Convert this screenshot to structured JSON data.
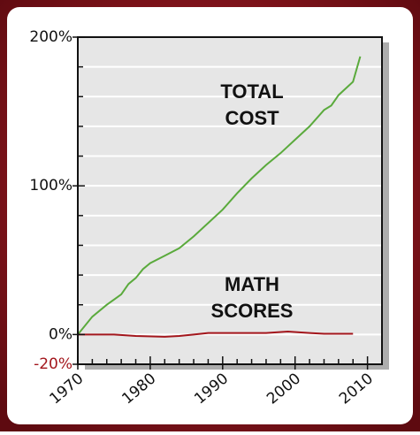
{
  "chart_data": {
    "type": "line",
    "xlim": [
      1970,
      2012
    ],
    "xticks": [
      1970,
      1980,
      1990,
      2000,
      2010
    ],
    "minor_xticks": [
      1972,
      1974,
      1976,
      1978,
      1982,
      1984,
      1986,
      1988,
      1992,
      1994,
      1996,
      1998,
      2002,
      2004,
      2006,
      2008
    ],
    "ylim": [
      -20,
      200
    ],
    "yticks": [
      {
        "value": -20,
        "label": "-20%"
      },
      {
        "value": 0,
        "label": "0%"
      },
      {
        "value": 100,
        "label": "100%"
      },
      {
        "value": 200,
        "label": "200%"
      }
    ],
    "minor_yticks": [
      20,
      40,
      60,
      80,
      120,
      140,
      160,
      180
    ],
    "grid": true,
    "annotations": [
      [
        "TOTAL",
        "COST"
      ],
      [
        "MATH",
        "SCORES"
      ]
    ],
    "series": [
      {
        "color": "#5aaa3c",
        "x": [
          1970,
          1972,
          1974,
          1976,
          1977,
          1978,
          1979,
          1980,
          1982,
          1984,
          1986,
          1988,
          1990,
          1992,
          1994,
          1996,
          1998,
          2000,
          2002,
          2004,
          2005,
          2006,
          2008,
          2009
        ],
        "values": [
          0,
          12,
          20,
          27,
          34,
          38,
          44,
          48,
          53,
          58,
          66,
          75,
          84,
          95,
          105,
          114,
          122,
          131,
          140,
          151,
          154,
          161,
          170,
          187
        ]
      },
      {
        "color": "#a3161c",
        "x": [
          1970,
          1975,
          1978,
          1982,
          1984,
          1986,
          1988,
          1990,
          1996,
          1999,
          2002,
          2004,
          2008
        ],
        "values": [
          0,
          0,
          -1,
          -1.5,
          -1,
          0,
          1,
          1,
          1,
          2,
          1,
          0.5,
          0.5
        ]
      }
    ]
  }
}
